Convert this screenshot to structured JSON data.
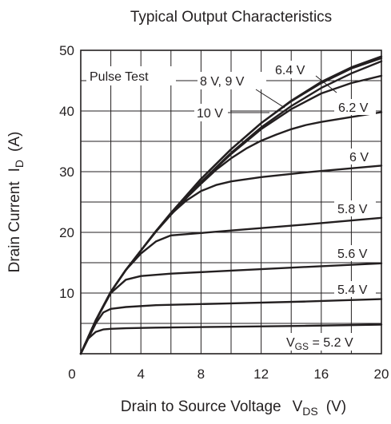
{
  "chart_data": {
    "type": "line",
    "title": "Typical Output Characteristics",
    "xlabel": {
      "main": "Drain to Source Voltage",
      "var": "V",
      "sub": "DS",
      "unit": "(V)"
    },
    "ylabel": {
      "main": "Drain Current",
      "var": "I",
      "sub": "D",
      "unit": "(A)"
    },
    "xlim": [
      0,
      20
    ],
    "ylim": [
      0,
      50
    ],
    "x_ticks": [
      0,
      4,
      8,
      12,
      16,
      20
    ],
    "y_ticks": [
      10,
      20,
      30,
      40,
      50
    ],
    "grid": true,
    "note": "Pulse Test",
    "series": [
      {
        "name": "V_GS = 5.2 V",
        "label": {
          "pre": "V",
          "sub": "GS",
          "post": " = 5.2 V"
        },
        "x": [
          0,
          0.5,
          1,
          1.5,
          2,
          3,
          5,
          10,
          15,
          20
        ],
        "y": [
          0,
          2.5,
          3.6,
          4,
          4.1,
          4.2,
          4.3,
          4.45,
          4.6,
          4.8
        ]
      },
      {
        "name": "5.4 V",
        "label": {
          "pre": "5.4 V",
          "sub": "",
          "post": ""
        },
        "x": [
          0,
          1,
          1.5,
          2,
          3,
          5,
          10,
          15,
          20
        ],
        "y": [
          0,
          5,
          6.8,
          7.4,
          7.7,
          8,
          8.3,
          8.6,
          9
        ]
      },
      {
        "name": "5.6 V",
        "label": {
          "pre": "5.6 V",
          "sub": "",
          "post": ""
        },
        "x": [
          0,
          1,
          2,
          3,
          4,
          6,
          10,
          15,
          20
        ],
        "y": [
          0,
          5.5,
          10,
          12.2,
          12.8,
          13.2,
          13.7,
          14.3,
          14.9
        ]
      },
      {
        "name": "5.8 V",
        "label": {
          "pre": "5.8 V",
          "sub": "",
          "post": ""
        },
        "x": [
          0,
          1,
          2,
          3,
          4,
          5,
          6,
          8,
          10,
          15,
          20
        ],
        "y": [
          0,
          5.5,
          10.2,
          13.8,
          16.5,
          18.5,
          19.5,
          19.9,
          20.3,
          21.3,
          22.4
        ]
      },
      {
        "name": "6 V",
        "label": {
          "pre": "6 V",
          "sub": "",
          "post": ""
        },
        "x": [
          0,
          1,
          2,
          3,
          4,
          5,
          6,
          7,
          8,
          9,
          10,
          12,
          15,
          20
        ],
        "y": [
          0,
          5.5,
          10.2,
          13.8,
          17,
          20.2,
          23,
          25.2,
          26.8,
          27.8,
          28.4,
          29.1,
          29.9,
          31
        ]
      },
      {
        "name": "6.2 V",
        "label": {
          "pre": "6.2 V",
          "sub": "",
          "post": ""
        },
        "x": [
          0,
          1,
          2,
          3,
          4,
          5,
          6,
          7,
          8,
          9,
          10,
          11,
          12,
          13,
          14,
          15,
          16,
          18,
          20
        ],
        "y": [
          0,
          5.5,
          10.2,
          13.8,
          17,
          20.2,
          23,
          25.6,
          28,
          30.3,
          32.2,
          33.8,
          35.1,
          36.1,
          37,
          37.7,
          38.2,
          39,
          39.8
        ]
      },
      {
        "name": "6.4 V",
        "label": {
          "pre": "6.4 V",
          "sub": "",
          "post": ""
        },
        "x": [
          0,
          1,
          2,
          3,
          4,
          5,
          6,
          8,
          10,
          12,
          14,
          16,
          18,
          20
        ],
        "y": [
          0,
          5.5,
          10.2,
          13.8,
          17,
          20.2,
          23,
          28.3,
          32.9,
          37,
          40.3,
          42.9,
          44.6,
          45.8
        ]
      },
      {
        "name": "8 V",
        "label": {
          "pre": "8 V",
          "sub": "",
          "post": ""
        },
        "x": [
          0,
          1,
          2,
          3,
          4,
          5,
          6,
          8,
          10,
          12,
          14,
          16,
          18,
          20
        ],
        "y": [
          0,
          5.5,
          10.2,
          13.8,
          17,
          20.2,
          23.2,
          28.8,
          33.7,
          38,
          41.6,
          44.6,
          47,
          48.7
        ]
      },
      {
        "name": "9 V",
        "label": {
          "pre": "9 V",
          "sub": "",
          "post": ""
        },
        "x": [
          0,
          1,
          2,
          3,
          4,
          5,
          6,
          8,
          10,
          12,
          14,
          16,
          18,
          20
        ],
        "y": [
          0,
          5.5,
          10.2,
          13.8,
          17,
          20.2,
          23.2,
          28.8,
          33.7,
          38,
          41.7,
          44.8,
          47.2,
          49
        ]
      },
      {
        "name": "10 V",
        "label": {
          "pre": "10 V",
          "sub": "",
          "post": ""
        },
        "x": [
          0,
          1,
          2,
          3,
          4,
          5,
          6,
          8,
          10,
          12,
          14,
          16,
          18,
          20
        ],
        "y": [
          0,
          5.5,
          10.2,
          13.8,
          17,
          20.1,
          22.9,
          28.3,
          33.1,
          37.3,
          40.8,
          43.8,
          46.2,
          48.2
        ]
      }
    ],
    "labels": {
      "gs_5_2": {
        "pre": "V",
        "sub": "GS",
        "post": " = 5.2 V"
      },
      "v5_4": "5.4 V",
      "v5_6": "5.6 V",
      "v5_8": "5.8 V",
      "v6": "6 V",
      "v6_2": "6.2 V",
      "v6_4": "6.4 V",
      "v8_9": "8 V, 9 V",
      "v10": "10 V"
    }
  }
}
